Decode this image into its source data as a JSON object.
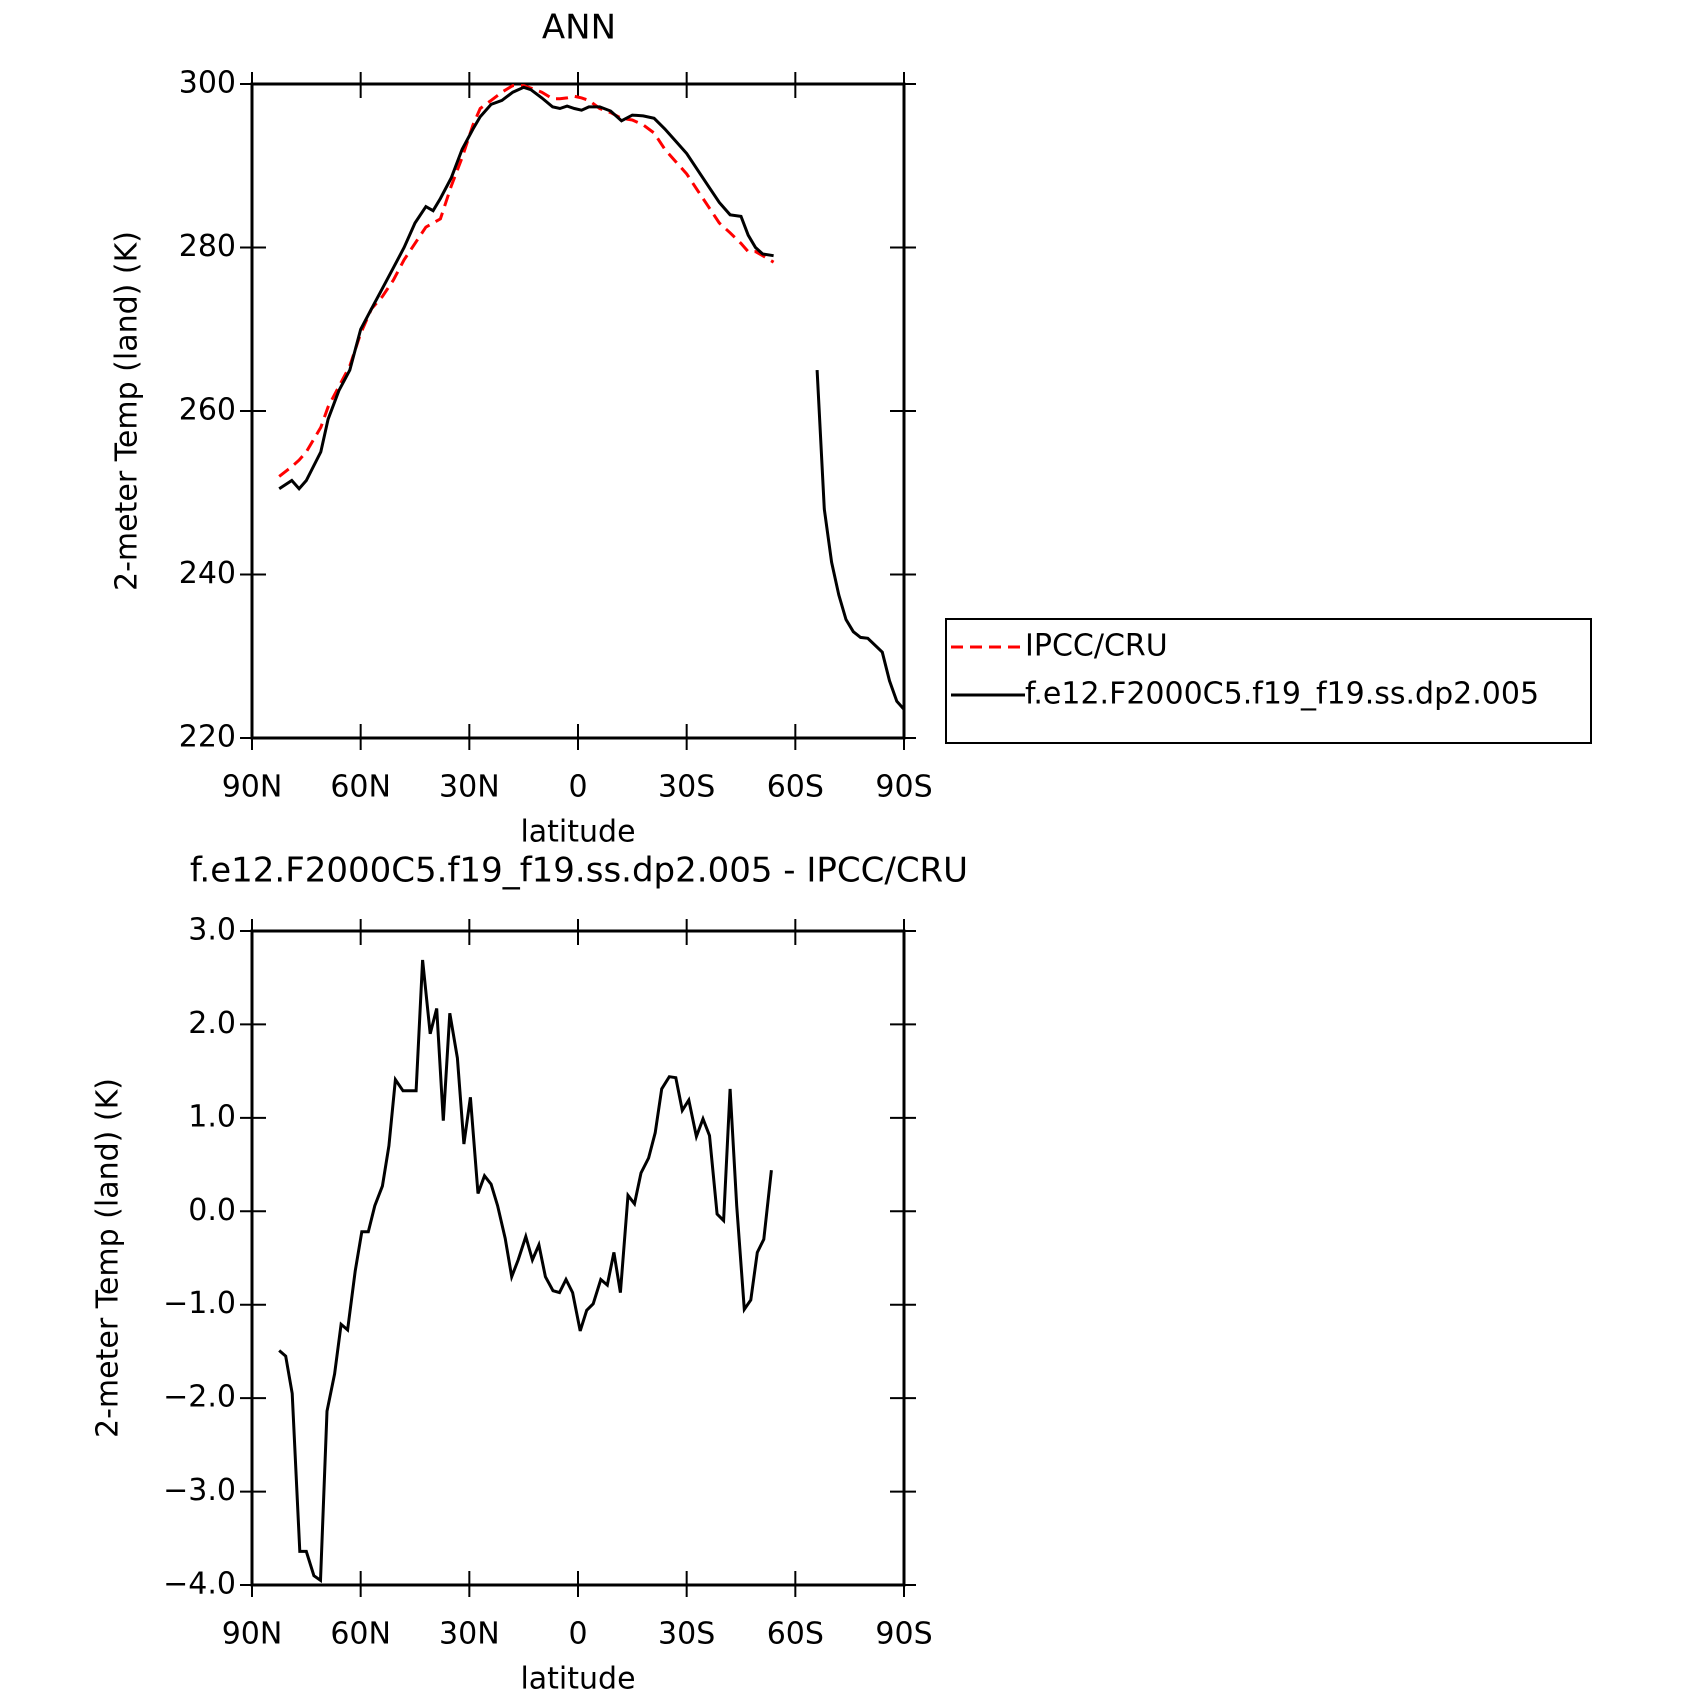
{
  "chart_data": [
    {
      "type": "line",
      "title": "ANN",
      "x_label": "latitude",
      "y_label": "2-meter Temp (land) (K)",
      "xlim": [
        90,
        -90
      ],
      "xticks": [
        {
          "value": 90,
          "label": "90N"
        },
        {
          "value": 60,
          "label": "60N"
        },
        {
          "value": 30,
          "label": "30N"
        },
        0,
        {
          "value": -30,
          "label": "30S"
        },
        {
          "value": -60,
          "label": "60S"
        },
        {
          "value": -90,
          "label": "90S"
        }
      ],
      "ylim": [
        220,
        300
      ],
      "yticks": [
        220,
        240,
        260,
        280,
        300
      ],
      "legend": "right",
      "x": [
        82.5,
        79,
        77,
        75,
        71,
        69,
        66,
        63,
        60,
        57,
        54,
        51,
        48,
        45,
        42,
        40,
        38,
        35,
        32,
        29,
        27,
        24,
        21,
        18,
        15,
        13,
        10,
        7,
        5,
        3,
        1,
        -1,
        -3,
        -6,
        -9,
        -12,
        -15,
        -18,
        -21,
        -24,
        -27,
        -30,
        -33,
        -36,
        -39,
        -42,
        -45,
        -47,
        -49,
        -51,
        -54,
        -60,
        -66,
        -68,
        -70,
        -72,
        -74,
        -76,
        -78,
        -80,
        -84,
        -86,
        -88,
        -90
      ],
      "series": [
        {
          "name": "IPCC/CRU",
          "color": "#ff0000",
          "dashed": true,
          "values": [
            252,
            253.2,
            254,
            255,
            258,
            260.5,
            263,
            265.5,
            269.5,
            272.5,
            274,
            276,
            278.5,
            280.5,
            282.5,
            283,
            283.5,
            287.5,
            291,
            295,
            297,
            298,
            299,
            299.8,
            299.8,
            299.5,
            299,
            298.2,
            298.2,
            298.3,
            298.5,
            298.3,
            298,
            297,
            296.5,
            295.8,
            295.6,
            295,
            294,
            292,
            290.5,
            289,
            287,
            285,
            283,
            281.8,
            280.5,
            279.5,
            279.5,
            279,
            278.2,
            null,
            null,
            null,
            null,
            null,
            null,
            null,
            null,
            null,
            null,
            null,
            null,
            null
          ]
        },
        {
          "name": "f.e12.F2000C5.f19_f19.ss.dp2.005",
          "color": "#000000",
          "dashed": false,
          "values": [
            250.5,
            251.5,
            250.5,
            251.5,
            255,
            259,
            262.5,
            265,
            270,
            272.5,
            275,
            277.5,
            280,
            283,
            285,
            284.5,
            286,
            288.5,
            292,
            294.5,
            296,
            297.5,
            298,
            299,
            299.6,
            299.3,
            298.3,
            297.2,
            297,
            297.3,
            297,
            296.8,
            297.2,
            297.2,
            296.7,
            295.5,
            296.2,
            296.1,
            295.8,
            294.5,
            293,
            291.5,
            289.5,
            287.5,
            285.5,
            284,
            283.8,
            281.5,
            280,
            279.2,
            279,
            null,
            265,
            248,
            241.5,
            237.5,
            234.5,
            233,
            232.3,
            232.2,
            230.5,
            227,
            224.5,
            223.5
          ]
        }
      ]
    },
    {
      "type": "line",
      "title": "f.e12.F2000C5.f19_f19.ss.dp2.005 - IPCC/CRU",
      "x_label": "latitude",
      "y_label": "2-meter Temp (land) (K)",
      "xlim": [
        90,
        -90
      ],
      "xticks": [
        {
          "value": 90,
          "label": "90N"
        },
        {
          "value": 60,
          "label": "60N"
        },
        {
          "value": 30,
          "label": "30N"
        },
        0,
        {
          "value": -30,
          "label": "30S"
        },
        {
          "value": -60,
          "label": "60S"
        },
        {
          "value": -90,
          "label": "90S"
        }
      ],
      "ylim": [
        -4,
        3
      ],
      "yticks": [
        {
          "value": -4,
          "label": "−4.0"
        },
        {
          "value": -3,
          "label": "−3.0"
        },
        {
          "value": -2,
          "label": "−2.0"
        },
        {
          "value": -1,
          "label": "−1.0"
        },
        {
          "value": 0,
          "label": "0.0"
        },
        {
          "value": 1,
          "label": "1.0"
        },
        {
          "value": 2,
          "label": "2.0"
        },
        {
          "value": 3,
          "label": "3.0"
        }
      ],
      "color": "#000000",
      "x": [
        82.5,
        80.7,
        78.9,
        76.8,
        75,
        72.9,
        71.1,
        69.3,
        67.2,
        65.4,
        63.6,
        61.5,
        59.7,
        57.9,
        56.1,
        54,
        52.2,
        50.4,
        48.3,
        46.5,
        44.7,
        42.9,
        40.8,
        39,
        37.2,
        35.4,
        33.3,
        31.5,
        29.7,
        27.6,
        25.8,
        24,
        22.2,
        20.1,
        18.3,
        16.5,
        14.4,
        12.6,
        10.8,
        9,
        6.9,
        5.1,
        3.3,
        1.5,
        -0.6,
        -2.4,
        -4.2,
        -6.3,
        -8.1,
        -9.9,
        -11.7,
        -13.8,
        -15.6,
        -17.4,
        -19.5,
        -21.3,
        -23.1,
        -25.2,
        -27,
        -28.8,
        -30.6,
        -32.7,
        -34.5,
        -36.3,
        -38.4,
        -40.2,
        -42,
        -43.8,
        -45.9,
        -47.7,
        -49.5,
        -51.3,
        -53.4
      ],
      "values": [
        -1.49,
        -1.55,
        -1.95,
        -3.64,
        -3.64,
        -3.9,
        -3.95,
        -2.14,
        -1.74,
        -1.21,
        -1.27,
        -0.64,
        -0.22,
        -0.22,
        0.06,
        0.27,
        0.7,
        1.41,
        1.29,
        1.29,
        1.29,
        2.69,
        1.9,
        2.17,
        0.97,
        2.12,
        1.64,
        0.72,
        1.22,
        0.19,
        0.38,
        0.29,
        0.06,
        -0.29,
        -0.7,
        -0.52,
        -0.27,
        -0.52,
        -0.36,
        -0.7,
        -0.85,
        -0.87,
        -0.73,
        -0.87,
        -1.28,
        -1.06,
        -0.99,
        -0.73,
        -0.79,
        -0.44,
        -0.87,
        0.17,
        0.08,
        0.41,
        0.57,
        0.84,
        1.31,
        1.44,
        1.43,
        1.08,
        1.19,
        0.8,
        0.99,
        0.81,
        -0.03,
        -0.1,
        1.31,
        0.06,
        -1.05,
        -0.95,
        -0.44,
        -0.3,
        0.44
      ]
    }
  ]
}
